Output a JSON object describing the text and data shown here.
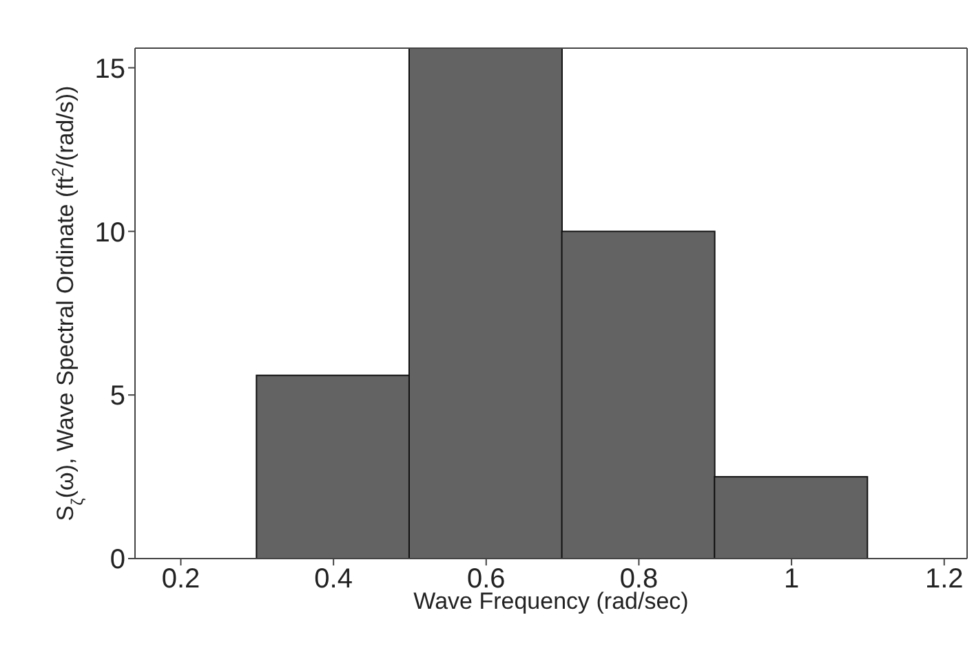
{
  "chart_data": {
    "type": "histogram",
    "xlabel": "Wave Frequency (rad/sec)",
    "ylabel": "S$_{ζ}$(ω), Wave Spectral Ordinate (ft$^{2}$/(rad/s))",
    "bins": [
      0.3,
      0.5,
      0.7,
      0.9,
      1.1
    ],
    "values": [
      5.6,
      15.6,
      10.0,
      2.5
    ],
    "color": "#636363",
    "xlim": [
      0.14,
      1.23
    ],
    "xticks": [
      0.2,
      0.4,
      0.6,
      0.8,
      1,
      1.2
    ],
    "ylim": [
      0,
      15.6
    ],
    "yticks": [
      0,
      5,
      10,
      15
    ],
    "grid": false
  }
}
